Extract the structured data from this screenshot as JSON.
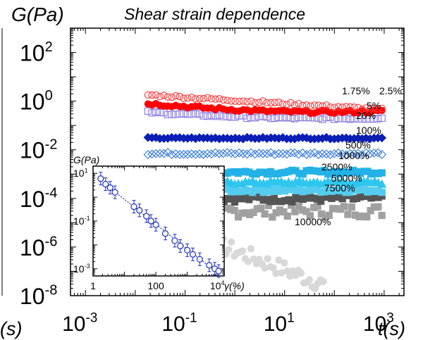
{
  "chart_data": {
    "type": "scatter",
    "title": "Shear strain dependence",
    "ylabel": "G(Pa)",
    "xlabel": "t(s)",
    "left_cropped_label": "(s)",
    "yscale": "log",
    "xscale": "log",
    "xlim": [
      0.0005,
      2500
    ],
    "ylim": [
      1e-08,
      1000
    ],
    "x_major_ticks": [
      0.001,
      0.1,
      10,
      1000
    ],
    "x_tick_labels": [
      {
        "base": "10",
        "exp": "-3"
      },
      {
        "base": "10",
        "exp": "-1"
      },
      {
        "base": "10",
        "exp": "1"
      },
      {
        "base": "10",
        "exp": "3"
      }
    ],
    "y_major_ticks": [
      1e-08,
      1e-06,
      0.0001,
      0.01,
      1,
      100
    ],
    "y_tick_labels": [
      {
        "base": "10",
        "exp": "-8"
      },
      {
        "base": "10",
        "exp": "-6"
      },
      {
        "base": "10",
        "exp": "-4"
      },
      {
        "base": "10",
        "exp": "-2"
      },
      {
        "base": "10",
        "exp": "0"
      },
      {
        "base": "10",
        "exp": "2"
      }
    ],
    "series": [
      {
        "name": "1.75%",
        "label_text": "1.75%",
        "color": "#ff3333",
        "marker": "circle-open",
        "t_start": 0.018,
        "t_end": 900,
        "g_start": 1.8,
        "g_end": 0.45,
        "dip": 0.0,
        "scatter": 0.05
      },
      {
        "name": "2.5%",
        "label_text": "2.5%",
        "color": "#ff0000",
        "marker": "circle-filled",
        "t_start": 0.018,
        "t_end": 900,
        "g_start": 0.8,
        "g_end": 0.38,
        "dip": 0.15,
        "scatter": 0.06
      },
      {
        "name": "5%",
        "label_text": "5%",
        "color": "#8877dd",
        "marker": "square-open",
        "t_start": 0.018,
        "t_end": 900,
        "g_start": 0.35,
        "g_end": 0.2,
        "dip": 0.1,
        "scatter": 0.05
      },
      {
        "name": "20%",
        "label_text": "20%",
        "color": "#0b1fb5",
        "marker": "diamond-filled",
        "t_start": 0.018,
        "t_end": 900,
        "g_start": 0.03,
        "g_end": 0.03,
        "dip": 0.0,
        "scatter": 0.03
      },
      {
        "name": "100%",
        "label_text": "100%",
        "color": "#3377dd",
        "marker": "diamond-open",
        "t_start": 0.018,
        "t_end": 900,
        "g_start": 0.007,
        "g_end": 0.007,
        "dip": 0.0,
        "scatter": 0.05
      },
      {
        "name": "500%",
        "label_text": "500%",
        "color": "#22b2e8",
        "marker": "square-filled",
        "t_start": 0.05,
        "t_end": 900,
        "g_start": 0.0012,
        "g_end": 0.0012,
        "dip": 0.0,
        "scatter": 0.08
      },
      {
        "name": "1000%",
        "label_text": "1000%",
        "color": "#2fc6ee",
        "marker": "triangle-filled",
        "t_start": 0.05,
        "t_end": 900,
        "g_start": 0.00045,
        "g_end": 0.00045,
        "dip": 0.0,
        "scatter": 0.08
      },
      {
        "name": "2500%",
        "label_text": "2500%",
        "color": "#55ccee",
        "marker": "square-filled",
        "t_start": 0.05,
        "t_end": 900,
        "g_start": 0.00022,
        "g_end": 0.00022,
        "dip": 0.0,
        "scatter": 0.1
      },
      {
        "name": "5000%",
        "label_text": "5000%",
        "color": "#555555",
        "marker": "square-filled",
        "t_start": 0.05,
        "t_end": 900,
        "g_start": 0.0001,
        "g_end": 0.0001,
        "dip": 0.0,
        "scatter": 0.15
      },
      {
        "name": "7500%",
        "label_text": "7500%",
        "color": "#a0a0a0",
        "marker": "square-filled",
        "t_start": 0.03,
        "t_end": 900,
        "g_start": 3e-05,
        "g_end": 3e-05,
        "dip": 0.0,
        "scatter": 0.25
      },
      {
        "name": "10000%",
        "label_text": "10000%",
        "color": "#d8d8d8",
        "marker": "circle-filled",
        "t_start": 0.03,
        "t_end": 60,
        "g_start": 1e-05,
        "g_end": 3e-08,
        "dip": 0.0,
        "scatter": 0.35
      }
    ],
    "inset": {
      "ylabel": "G(Pa)",
      "xlabel": "γ(%)",
      "xscale": "log",
      "yscale": "log",
      "xlim": [
        1,
        15000
      ],
      "ylim": [
        0.0005,
        20
      ],
      "x_tick_labels": [
        {
          "text": "1",
          "value": 1
        },
        {
          "text": "100",
          "value": 100
        },
        {
          "base": "10",
          "exp": "4",
          "value": 10000
        }
      ],
      "y_tick_labels": [
        {
          "base": "10",
          "exp": "1",
          "value": 10
        },
        {
          "base": "10",
          "exp": "-1",
          "value": 0.1
        },
        {
          "base": "10",
          "exp": "-3",
          "value": 0.001
        }
      ],
      "color": "#1a2fbb",
      "x": [
        1.75,
        2.5,
        3.5,
        5,
        20,
        30,
        50,
        70,
        100,
        200,
        400,
        600,
        1000,
        1500,
        2500,
        5000,
        7500,
        10000
      ],
      "y": [
        6.0,
        3.5,
        2.5,
        1.6,
        0.4,
        0.28,
        0.16,
        0.1,
        0.07,
        0.03,
        0.015,
        0.009,
        0.006,
        0.004,
        0.0025,
        0.0014,
        0.001,
        0.0008
      ]
    }
  }
}
